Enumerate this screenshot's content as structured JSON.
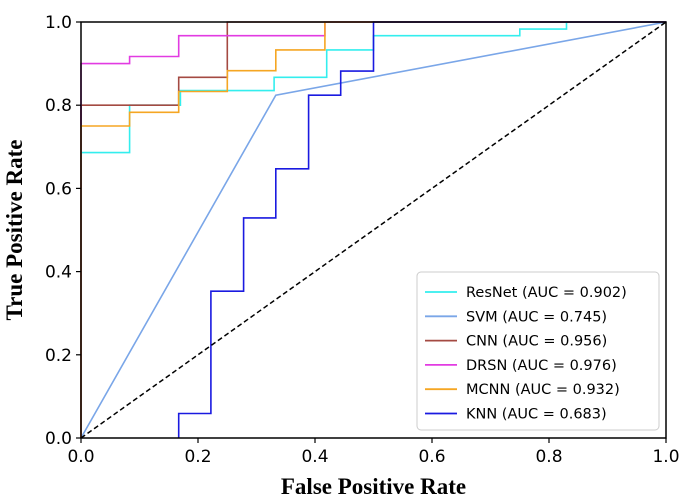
{
  "chart_data": {
    "type": "line",
    "title": "",
    "xlabel": "False Positive Rate",
    "ylabel": "True Positive Rate",
    "xlim": [
      0.0,
      1.0
    ],
    "ylim": [
      0.0,
      1.0
    ],
    "xticks": [
      "0.0",
      "0.2",
      "0.4",
      "0.6",
      "0.8",
      "1.0"
    ],
    "yticks": [
      "0.0",
      "0.2",
      "0.4",
      "0.6",
      "0.8",
      "1.0"
    ],
    "grid": false,
    "legend_position": "lower-right",
    "series": [
      {
        "name": "ResNet",
        "label": "ResNet  (AUC = 0.902)",
        "auc": 0.902,
        "color": "#33eeee",
        "points": [
          [
            0,
            0
          ],
          [
            0,
            0.686
          ],
          [
            0.083,
            0.686
          ],
          [
            0.083,
            0.8
          ],
          [
            0.17,
            0.8
          ],
          [
            0.17,
            0.835
          ],
          [
            0.33,
            0.835
          ],
          [
            0.33,
            0.867
          ],
          [
            0.42,
            0.867
          ],
          [
            0.42,
            0.933
          ],
          [
            0.5,
            0.933
          ],
          [
            0.5,
            0.967
          ],
          [
            0.75,
            0.967
          ],
          [
            0.75,
            0.983
          ],
          [
            0.83,
            0.983
          ],
          [
            0.83,
            1.0
          ],
          [
            1.0,
            1.0
          ]
        ]
      },
      {
        "name": "SVM",
        "label": "SVM  (AUC = 0.745)",
        "auc": 0.745,
        "color": "#7aa6e8",
        "points": [
          [
            0,
            0
          ],
          [
            0.333,
            0.824
          ],
          [
            1.0,
            1.0
          ]
        ]
      },
      {
        "name": "CNN",
        "label": "CNN  (AUC = 0.956)",
        "auc": 0.956,
        "color": "#a44a42",
        "points": [
          [
            0,
            0
          ],
          [
            0,
            0.8
          ],
          [
            0.167,
            0.8
          ],
          [
            0.167,
            0.867
          ],
          [
            0.25,
            0.867
          ],
          [
            0.25,
            1.0
          ],
          [
            1.0,
            1.0
          ]
        ]
      },
      {
        "name": "DRSN",
        "label": "DRSN  (AUC = 0.976)",
        "auc": 0.976,
        "color": "#e23be2",
        "points": [
          [
            0,
            0
          ],
          [
            0,
            0.9
          ],
          [
            0.083,
            0.9
          ],
          [
            0.083,
            0.917
          ],
          [
            0.167,
            0.917
          ],
          [
            0.167,
            0.967
          ],
          [
            0.417,
            0.967
          ],
          [
            0.417,
            1.0
          ],
          [
            1.0,
            1.0
          ]
        ]
      },
      {
        "name": "MCNN",
        "label": "MCNN  (AUC = 0.932)",
        "auc": 0.932,
        "color": "#f5a623",
        "points": [
          [
            0,
            0
          ],
          [
            0,
            0.75
          ],
          [
            0.083,
            0.75
          ],
          [
            0.083,
            0.783
          ],
          [
            0.167,
            0.783
          ],
          [
            0.167,
            0.833
          ],
          [
            0.25,
            0.833
          ],
          [
            0.25,
            0.883
          ],
          [
            0.333,
            0.883
          ],
          [
            0.333,
            0.933
          ],
          [
            0.417,
            0.933
          ],
          [
            0.417,
            1.0
          ],
          [
            1.0,
            1.0
          ]
        ]
      },
      {
        "name": "KNN",
        "label": "KNN  (AUC = 0.683)",
        "auc": 0.683,
        "color": "#1a1ae0",
        "points": [
          [
            0.167,
            0
          ],
          [
            0.167,
            0.059
          ],
          [
            0.222,
            0.059
          ],
          [
            0.222,
            0.353
          ],
          [
            0.278,
            0.353
          ],
          [
            0.278,
            0.529
          ],
          [
            0.333,
            0.529
          ],
          [
            0.333,
            0.647
          ],
          [
            0.389,
            0.647
          ],
          [
            0.389,
            0.824
          ],
          [
            0.444,
            0.824
          ],
          [
            0.444,
            0.882
          ],
          [
            0.5,
            0.882
          ],
          [
            0.5,
            1.0
          ],
          [
            1.0,
            1.0
          ]
        ]
      }
    ],
    "reference_line": {
      "points": [
        [
          0,
          0
        ],
        [
          1,
          1
        ]
      ],
      "color": "#000000",
      "style": "dashed"
    }
  }
}
